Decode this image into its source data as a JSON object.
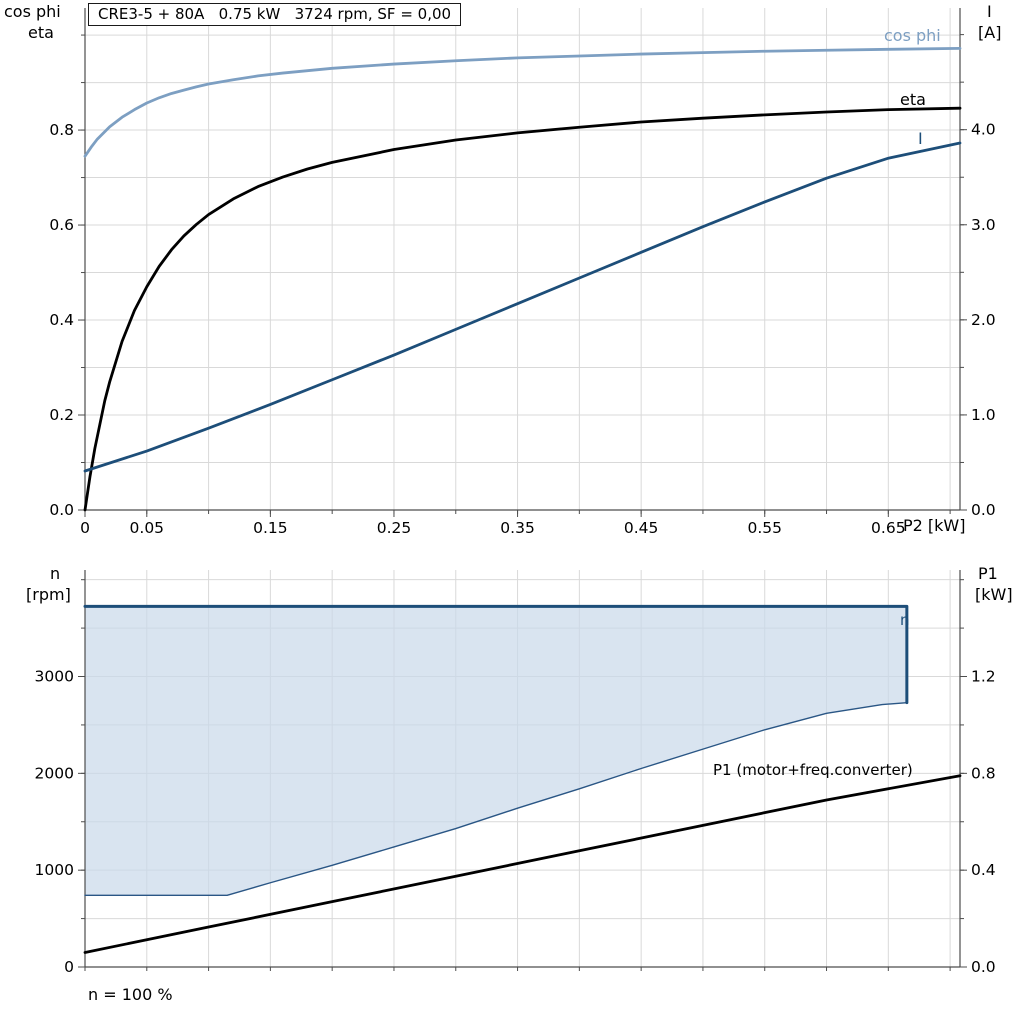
{
  "title": "CRE3-5 + 80A   0.75 kW   3724 rpm, SF = 0,00",
  "corner_labels": {
    "top_left_1": "cos phi",
    "top_left_2": "eta",
    "top_right_1": "I",
    "top_right_2": "[A]",
    "x_axis": "P2 [kW]",
    "bottom_left_1": "n",
    "bottom_left_2": "[rpm]",
    "bottom_right_1": "P1",
    "bottom_right_2": "[kW]",
    "footnote": "n = 100 %"
  },
  "curve_labels": {
    "cos_phi": "cos phi",
    "eta": "eta",
    "current": "I",
    "n": "n",
    "p1": "P1 (motor+freq.converter)"
  },
  "colors": {
    "steel_blue": "#7d9fc2",
    "dark_blue": "#1d4e79",
    "black": "#000000",
    "region_fill": "#c9d9ea",
    "grid": "#d9d9d9",
    "axis": "#4d4d4d"
  },
  "chart_data": [
    {
      "type": "line",
      "title": "CRE3-5 + 80A   0.75 kW   3724 rpm, SF = 0,00",
      "xlabel": "P2 [kW]",
      "ylabel_left": "cos phi / eta",
      "ylabel_right": "I [A]",
      "xlim": [
        0,
        0.708
      ],
      "ylim_left": [
        0,
        1.057
      ],
      "ylim_right": [
        0,
        5.28
      ],
      "x_grid_step": 0.05,
      "left_grid_step": 0.1,
      "x_ticks": [
        [
          0,
          "0"
        ],
        [
          0.05,
          "0.05"
        ],
        [
          0.15,
          "0.15"
        ],
        [
          0.25,
          "0.25"
        ],
        [
          0.35,
          "0.35"
        ],
        [
          0.45,
          "0.45"
        ],
        [
          0.55,
          "0.55"
        ],
        [
          0.65,
          "0.65"
        ]
      ],
      "left_ticks": [
        [
          0,
          "0.0"
        ],
        [
          0.2,
          "0.2"
        ],
        [
          0.4,
          "0.4"
        ],
        [
          0.6,
          "0.6"
        ],
        [
          0.8,
          "0.8"
        ]
      ],
      "right_ticks": [
        [
          0,
          "0.0"
        ],
        [
          1,
          "1.0"
        ],
        [
          2,
          "2.0"
        ],
        [
          3,
          "3.0"
        ],
        [
          4,
          "4.0"
        ]
      ],
      "series": [
        {
          "name": "cos phi",
          "axis": "left",
          "color": "#7d9fc2",
          "width": 2.8,
          "points": [
            [
              0,
              0.745
            ],
            [
              0.005,
              0.764
            ],
            [
              0.01,
              0.781
            ],
            [
              0.02,
              0.807
            ],
            [
              0.03,
              0.827
            ],
            [
              0.04,
              0.843
            ],
            [
              0.05,
              0.857
            ],
            [
              0.06,
              0.868
            ],
            [
              0.07,
              0.877
            ],
            [
              0.08,
              0.884
            ],
            [
              0.09,
              0.891
            ],
            [
              0.1,
              0.897
            ],
            [
              0.12,
              0.906
            ],
            [
              0.14,
              0.914
            ],
            [
              0.16,
              0.92
            ],
            [
              0.18,
              0.925
            ],
            [
              0.2,
              0.93
            ],
            [
              0.25,
              0.939
            ],
            [
              0.3,
              0.946
            ],
            [
              0.35,
              0.952
            ],
            [
              0.4,
              0.956
            ],
            [
              0.45,
              0.96
            ],
            [
              0.5,
              0.963
            ],
            [
              0.55,
              0.966
            ],
            [
              0.6,
              0.968
            ],
            [
              0.65,
              0.97
            ],
            [
              0.708,
              0.972
            ]
          ]
        },
        {
          "name": "eta",
          "axis": "left",
          "color": "#000000",
          "width": 2.8,
          "points": [
            [
              0,
              0
            ],
            [
              0.004,
              0.07
            ],
            [
              0.008,
              0.13
            ],
            [
              0.012,
              0.18
            ],
            [
              0.016,
              0.23
            ],
            [
              0.02,
              0.27
            ],
            [
              0.03,
              0.355
            ],
            [
              0.04,
              0.42
            ],
            [
              0.05,
              0.47
            ],
            [
              0.06,
              0.513
            ],
            [
              0.07,
              0.548
            ],
            [
              0.08,
              0.577
            ],
            [
              0.09,
              0.601
            ],
            [
              0.1,
              0.622
            ],
            [
              0.12,
              0.655
            ],
            [
              0.14,
              0.681
            ],
            [
              0.16,
              0.701
            ],
            [
              0.18,
              0.718
            ],
            [
              0.2,
              0.732
            ],
            [
              0.25,
              0.759
            ],
            [
              0.3,
              0.779
            ],
            [
              0.35,
              0.794
            ],
            [
              0.4,
              0.806
            ],
            [
              0.45,
              0.817
            ],
            [
              0.5,
              0.825
            ],
            [
              0.55,
              0.832
            ],
            [
              0.6,
              0.838
            ],
            [
              0.65,
              0.843
            ],
            [
              0.708,
              0.846
            ]
          ]
        },
        {
          "name": "I",
          "axis": "right",
          "color": "#1d4e79",
          "width": 2.8,
          "points": [
            [
              0,
              0.41
            ],
            [
              0.05,
              0.62
            ],
            [
              0.1,
              0.86
            ],
            [
              0.15,
              1.11
            ],
            [
              0.2,
              1.37
            ],
            [
              0.25,
              1.63
            ],
            [
              0.3,
              1.9
            ],
            [
              0.35,
              2.17
            ],
            [
              0.4,
              2.44
            ],
            [
              0.45,
              2.71
            ],
            [
              0.5,
              2.98
            ],
            [
              0.55,
              3.24
            ],
            [
              0.6,
              3.49
            ],
            [
              0.65,
              3.7
            ],
            [
              0.708,
              3.86
            ]
          ]
        }
      ]
    },
    {
      "type": "line",
      "title": "",
      "xlabel": "",
      "ylabel_left": "n [rpm]",
      "ylabel_right": "P1 [kW]",
      "xlim": [
        0,
        0.708
      ],
      "ylim_left": [
        0,
        4100
      ],
      "ylim_right": [
        0,
        1.64
      ],
      "x_grid_step": 0.05,
      "left_grid_step": 500,
      "x_ticks": [],
      "left_ticks": [
        [
          0,
          "0"
        ],
        [
          1000,
          "1000"
        ],
        [
          2000,
          "2000"
        ],
        [
          3000,
          "3000"
        ]
      ],
      "right_ticks": [
        [
          0,
          "0.0"
        ],
        [
          0.4,
          "0.4"
        ],
        [
          0.8,
          "0.8"
        ],
        [
          1.2,
          "1.2"
        ]
      ],
      "fill": {
        "name": "n-operating-region",
        "color": "#c9d9ea",
        "opacity": 0.7,
        "points": [
          [
            0,
            3724
          ],
          [
            0.665,
            3724
          ],
          [
            0.665,
            2730
          ],
          [
            0.645,
            2710
          ],
          [
            0.6,
            2620
          ],
          [
            0.55,
            2450
          ],
          [
            0.5,
            2250
          ],
          [
            0.45,
            2050
          ],
          [
            0.4,
            1840
          ],
          [
            0.35,
            1640
          ],
          [
            0.3,
            1430
          ],
          [
            0.25,
            1240
          ],
          [
            0.2,
            1050
          ],
          [
            0.15,
            870
          ],
          [
            0.115,
            740
          ],
          [
            0,
            740
          ]
        ]
      },
      "series": [
        {
          "name": "n-lower-bound",
          "axis": "left",
          "color": "#2a5685",
          "width": 1.4,
          "points": [
            [
              0,
              740
            ],
            [
              0.115,
              740
            ],
            [
              0.15,
              870
            ],
            [
              0.2,
              1050
            ],
            [
              0.25,
              1240
            ],
            [
              0.3,
              1430
            ],
            [
              0.35,
              1640
            ],
            [
              0.4,
              1840
            ],
            [
              0.45,
              2050
            ],
            [
              0.5,
              2250
            ],
            [
              0.55,
              2450
            ],
            [
              0.6,
              2620
            ],
            [
              0.645,
              2710
            ],
            [
              0.665,
              2730
            ]
          ]
        },
        {
          "name": "n",
          "axis": "left",
          "color": "#1d4e79",
          "width": 3,
          "points": [
            [
              0,
              3724
            ],
            [
              0.665,
              3724
            ],
            [
              0.665,
              2730
            ]
          ]
        },
        {
          "name": "P1 (motor+freq.converter)",
          "axis": "right",
          "color": "#000000",
          "width": 2.8,
          "points": [
            [
              0,
              0.06
            ],
            [
              0.1,
              0.165
            ],
            [
              0.2,
              0.27
            ],
            [
              0.3,
              0.375
            ],
            [
              0.4,
              0.48
            ],
            [
              0.5,
              0.585
            ],
            [
              0.6,
              0.69
            ],
            [
              0.708,
              0.79
            ]
          ]
        }
      ]
    }
  ]
}
